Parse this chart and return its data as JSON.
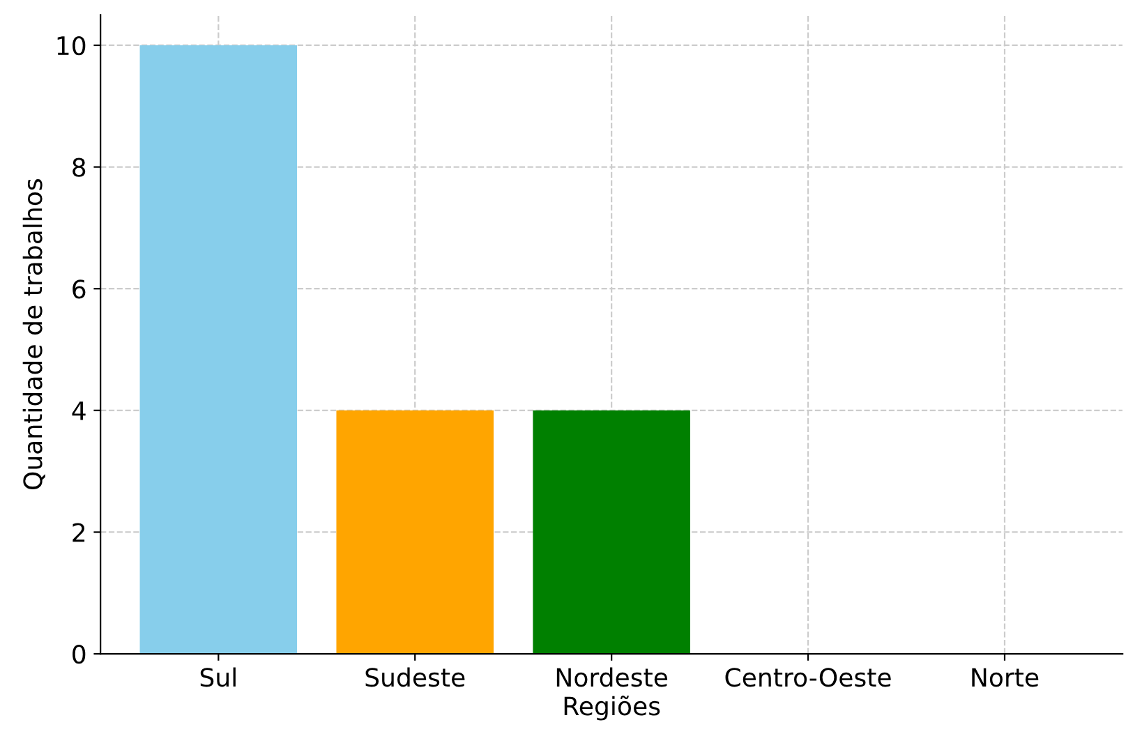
{
  "chart_data": {
    "type": "bar",
    "xlabel": "Regiões",
    "ylabel": "Quantidade de trabalhos",
    "categories": [
      "Sul",
      "Sudeste",
      "Nordeste",
      "Centro-Oeste",
      "Norte"
    ],
    "values": [
      10,
      4,
      4,
      0,
      0
    ],
    "colors": [
      "#87ceeb",
      "#ffa500",
      "#008000",
      null,
      null
    ],
    "ylim": [
      0,
      10.5
    ],
    "yticks": [
      0,
      2,
      4,
      6,
      8,
      10
    ],
    "grid": true
  }
}
